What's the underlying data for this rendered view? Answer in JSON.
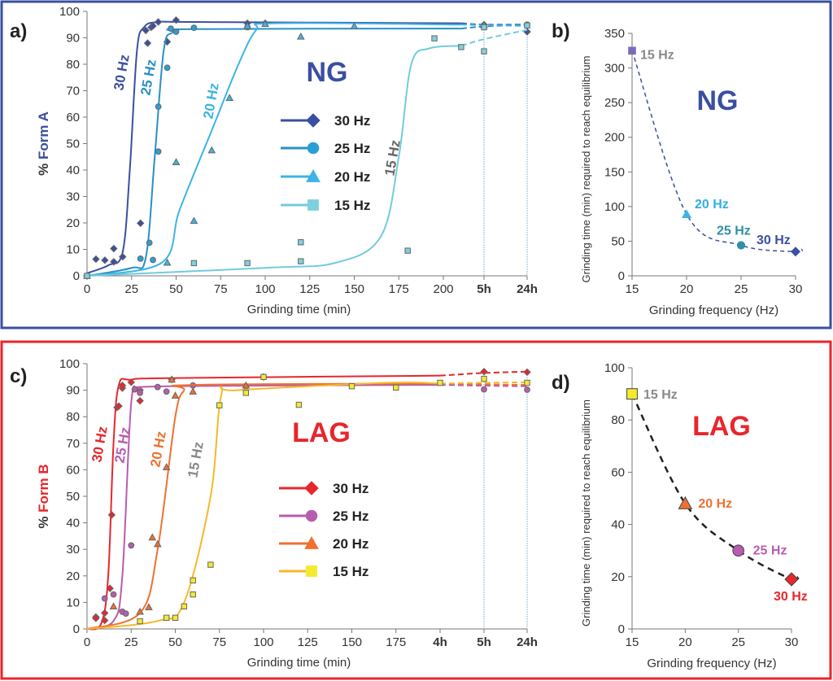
{
  "chart_data": [
    {
      "panel": "a)",
      "type": "line",
      "title": "NG",
      "title_color": "#3b4fa0",
      "xlabel": "Grinding time (min)",
      "ylabel_prefix": "% ",
      "ylabel_main": "Form A",
      "ylabel_color": "#3b4fa0",
      "ylim": [
        0,
        100
      ],
      "y_ticks": [
        0,
        10,
        20,
        30,
        40,
        50,
        60,
        70,
        80,
        90,
        100
      ],
      "x_ticks": [
        "0",
        "25",
        "50",
        "75",
        "100",
        "125",
        "150",
        "175",
        "200",
        "5h",
        "24h"
      ],
      "grid": false,
      "legend": "center",
      "series": [
        {
          "name": "30 Hz",
          "marker": "diamond",
          "color": "#3b4fa0",
          "fill": "#3b4fa0",
          "points": [
            [
              5,
              6.3
            ],
            [
              10,
              5.9
            ],
            [
              15,
              5.3
            ],
            [
              15,
              10.3
            ],
            [
              20,
              7.2
            ],
            [
              30,
              19.9
            ],
            [
              33,
              92.8
            ],
            [
              34,
              88
            ],
            [
              36,
              94
            ],
            [
              37,
              94.5
            ],
            [
              40,
              96
            ],
            [
              45,
              88.5
            ],
            [
              50,
              96.7
            ],
            [
              90,
              95.5
            ],
            [
              100,
              95.5
            ],
            [
              "5h",
              95
            ],
            [
              "24h",
              92.3
            ]
          ],
          "fit": [
            [
              0,
              1
            ],
            [
              12,
              4
            ],
            [
              20,
              9
            ],
            [
              24,
              40
            ],
            [
              28,
              85
            ],
            [
              32,
              94
            ],
            [
              40,
              96
            ],
            [
              60,
              96
            ],
            [
              210,
              95.5
            ]
          ],
          "fit_ext": [
            [
              210,
              95.5
            ],
            [
              "5h",
              95
            ],
            [
              "24h",
              95
            ]
          ],
          "annotation": "30 Hz"
        },
        {
          "name": "25 Hz",
          "marker": "circle",
          "color": "#2a8fc8",
          "fill": "#2a9fd6",
          "points": [
            [
              0,
              0
            ],
            [
              30,
              6.5
            ],
            [
              35,
              12.5
            ],
            [
              37,
              6
            ],
            [
              40,
              64
            ],
            [
              40,
              47
            ],
            [
              45,
              78.7
            ],
            [
              47,
              93.5
            ],
            [
              50,
              92.3
            ],
            [
              60,
              93.8
            ],
            [
              90,
              94
            ],
            [
              "5h",
              94.5
            ],
            [
              "24h",
              95
            ]
          ],
          "fit": [
            [
              0,
              0
            ],
            [
              25,
              3
            ],
            [
              33,
              7
            ],
            [
              38,
              45
            ],
            [
              43,
              85
            ],
            [
              48,
              92
            ],
            [
              60,
              93.3
            ],
            [
              210,
              93.5
            ]
          ],
          "fit_ext": [
            [
              210,
              93.5
            ],
            [
              "5h",
              94.3
            ],
            [
              "24h",
              95
            ]
          ],
          "annotation": "25 Hz"
        },
        {
          "name": "20 Hz",
          "marker": "triangle",
          "color": "#3cb4e6",
          "fill": "#3cb4e6",
          "points": [
            [
              0,
              0
            ],
            [
              45,
              5
            ],
            [
              50,
              43
            ],
            [
              60,
              20.8
            ],
            [
              70,
              47.5
            ],
            [
              80,
              67.3
            ],
            [
              90,
              94.5
            ],
            [
              100,
              95.3
            ],
            [
              120,
              90.5
            ],
            [
              150,
              94.4
            ],
            [
              "5h",
              94.8
            ]
          ],
          "fit": [
            [
              0,
              0
            ],
            [
              42,
              5
            ],
            [
              52,
              25
            ],
            [
              70,
              55
            ],
            [
              85,
              80
            ],
            [
              95,
              93
            ],
            [
              105,
              95.5
            ],
            [
              210,
              95
            ]
          ],
          "fit_ext": [
            [
              210,
              95
            ],
            [
              "5h",
              94.8
            ],
            [
              "24h",
              94.5
            ]
          ],
          "annotation": "20 Hz"
        },
        {
          "name": "15 Hz",
          "marker": "square",
          "color": "#72cbdc",
          "fill": "#7fd0de",
          "points": [
            [
              0,
              0
            ],
            [
              60,
              4.8
            ],
            [
              90,
              4.8
            ],
            [
              120,
              5.5
            ],
            [
              120,
              12.7
            ],
            [
              180,
              9.5
            ],
            [
              195,
              89.8
            ],
            [
              210,
              86.5
            ],
            [
              "5h",
              84.9
            ],
            [
              "5h",
              94
            ],
            [
              "24h",
              94.7
            ]
          ],
          "fit": [
            [
              0,
              0
            ],
            [
              100,
              3
            ],
            [
              140,
              5
            ],
            [
              165,
              15
            ],
            [
              175,
              45
            ],
            [
              182,
              80
            ],
            [
              192,
              86
            ],
            [
              210,
              87
            ]
          ],
          "fit_ext": [
            [
              210,
              87
            ],
            [
              "5h",
              89.5
            ],
            [
              "24h",
              93
            ]
          ],
          "annotation": "15 Hz"
        }
      ]
    },
    {
      "panel": "b)",
      "type": "scatter",
      "title": "NG",
      "title_color": "#3b4fa0",
      "xlabel": "Grinding frequency (Hz)",
      "ylabel": "Grinding time (min) required to reach equilibrium",
      "xlim": [
        15,
        30
      ],
      "ylim": [
        0,
        350
      ],
      "x_ticks": [
        15,
        20,
        25,
        30
      ],
      "y_ticks": [
        0,
        50,
        100,
        150,
        200,
        250,
        300,
        350
      ],
      "trend_color": "#3b4fa0",
      "points": [
        {
          "x": 15,
          "y": 325,
          "label": "15 Hz",
          "marker": "square",
          "fill": "#7b6cb8",
          "label_color": "#8a8a8a"
        },
        {
          "x": 20,
          "y": 89,
          "label": "20 Hz",
          "marker": "triangle",
          "fill": "#3cb4e6",
          "label_color": "#2fb0e6"
        },
        {
          "x": 25,
          "y": 44,
          "label": "25 Hz",
          "marker": "circle",
          "fill": "#2f8fa6",
          "label_color": "#2f8fa6"
        },
        {
          "x": 30,
          "y": 35,
          "label": "30 Hz",
          "marker": "diamond",
          "fill": "#3b4fa0",
          "label_color": "#3b4fa0"
        }
      ]
    },
    {
      "panel": "c)",
      "type": "line",
      "title": "LAG",
      "title_color": "#e8262c",
      "xlabel": "Grinding time (min)",
      "ylabel_prefix": "% ",
      "ylabel_main": "Form B",
      "ylabel_color": "#e8262c",
      "ylim": [
        0,
        100
      ],
      "y_ticks": [
        0,
        10,
        20,
        30,
        40,
        50,
        60,
        70,
        80,
        90,
        100
      ],
      "x_ticks": [
        "0",
        "25",
        "50",
        "75",
        "100",
        "125",
        "150",
        "175",
        "4h",
        "5h",
        "24h"
      ],
      "grid": false,
      "legend": "center",
      "series": [
        {
          "name": "30 Hz",
          "marker": "diamond",
          "color": "#e8262c",
          "fill": "#e8262c",
          "points": [
            [
              5,
              4.5
            ],
            [
              5,
              4
            ],
            [
              10,
              3.2
            ],
            [
              10,
              6
            ],
            [
              13,
              15.3
            ],
            [
              14,
              43
            ],
            [
              17,
              83.5
            ],
            [
              18,
              84
            ],
            [
              20,
              90.8
            ],
            [
              20,
              91.8
            ],
            [
              25,
              93
            ],
            [
              30,
              90
            ],
            [
              30,
              86
            ],
            [
              48,
              94
            ],
            [
              100,
              95
            ],
            [
              "5h",
              97
            ],
            [
              "24h",
              96.8
            ]
          ],
          "fit": [
            [
              0,
              0
            ],
            [
              8,
              2
            ],
            [
              12,
              20
            ],
            [
              15,
              70
            ],
            [
              18,
              92
            ],
            [
              25,
              94
            ],
            [
              50,
              94.6
            ],
            [
              200,
              95.5
            ]
          ],
          "fit_ext": [
            [
              200,
              95.5
            ],
            [
              "5h",
              96.5
            ],
            [
              "24h",
              97
            ]
          ],
          "annotation": "30 Hz"
        },
        {
          "name": "25 Hz",
          "marker": "circle",
          "color": "#b85cb0",
          "fill": "#b85cb0",
          "points": [
            [
              10,
              11.5
            ],
            [
              15,
              13
            ],
            [
              20,
              6.5
            ],
            [
              22,
              5.8
            ],
            [
              25,
              31.5
            ],
            [
              27,
              90.3
            ],
            [
              30,
              89
            ],
            [
              40,
              91.2
            ],
            [
              45,
              89.5
            ],
            [
              60,
              91.8
            ],
            [
              90,
              91.5
            ],
            [
              "5h",
              90.3
            ],
            [
              "24h",
              90.2
            ]
          ],
          "fit": [
            [
              0,
              0
            ],
            [
              15,
              3
            ],
            [
              20,
              20
            ],
            [
              25,
              85
            ],
            [
              30,
              90
            ],
            [
              45,
              91.5
            ],
            [
              200,
              92
            ]
          ],
          "fit_ext": [
            [
              200,
              92
            ],
            [
              "5h",
              91.7
            ],
            [
              "24h",
              91.5
            ]
          ],
          "annotation": "25 Hz"
        },
        {
          "name": "20 Hz",
          "marker": "triangle",
          "color": "#f07030",
          "fill": "#f07030",
          "points": [
            [
              15,
              8.5
            ],
            [
              30,
              6.5
            ],
            [
              35,
              8.2
            ],
            [
              37,
              34.5
            ],
            [
              40,
              32
            ],
            [
              45,
              61
            ],
            [
              48,
              94
            ],
            [
              50,
              88
            ],
            [
              60,
              89.5
            ],
            [
              90,
              91.8
            ]
          ],
          "fit": [
            [
              0,
              0
            ],
            [
              30,
              6
            ],
            [
              40,
              30
            ],
            [
              50,
              80
            ],
            [
              55,
              90
            ],
            [
              60,
              92
            ],
            [
              200,
              92.5
            ]
          ],
          "fit_ext": [
            [
              200,
              92.5
            ],
            [
              "5h",
              92.2
            ],
            [
              "24h",
              92
            ]
          ],
          "annotation": "20 Hz"
        },
        {
          "name": "15 Hz",
          "marker": "square",
          "color": "#f5b82a",
          "fill": "#f3ea2e",
          "points": [
            [
              30,
              2.9
            ],
            [
              45,
              4.2
            ],
            [
              50,
              4.2
            ],
            [
              55,
              8.5
            ],
            [
              60,
              13
            ],
            [
              60,
              18.3
            ],
            [
              70,
              24.2
            ],
            [
              75,
              84.3
            ],
            [
              90,
              89
            ],
            [
              100,
              95
            ],
            [
              120,
              84.5
            ],
            [
              150,
              91.5
            ],
            [
              175,
              91
            ],
            [
              "4h",
              92.8
            ],
            [
              "5h",
              94.3
            ],
            [
              "24h",
              92.8
            ]
          ],
          "fit": [
            [
              0,
              0
            ],
            [
              40,
              3
            ],
            [
              55,
              10
            ],
            [
              70,
              50
            ],
            [
              76,
              88
            ],
            [
              85,
              90
            ],
            [
              170,
              92.8
            ],
            [
              200,
              92.5
            ]
          ],
          "fit_ext": [
            [
              200,
              92.5
            ],
            [
              "5h",
              92.8
            ],
            [
              "24h",
              93
            ]
          ],
          "annotation": "15 Hz"
        }
      ]
    },
    {
      "panel": "d)",
      "type": "scatter",
      "title": "LAG",
      "title_color": "#e8262c",
      "xlabel": "Grinding frequency (Hz)",
      "ylabel": "Grinding time (min) required to reach equilibrium",
      "xlim": [
        15,
        30
      ],
      "ylim": [
        0,
        100
      ],
      "x_ticks": [
        15,
        20,
        25,
        30
      ],
      "y_ticks": [
        0,
        20,
        40,
        60,
        80,
        100
      ],
      "trend_color": "#222222",
      "points": [
        {
          "x": 15,
          "y": 90,
          "label": "15 Hz",
          "marker": "square",
          "fill": "#f3ea2e",
          "label_color": "#8a8a8a"
        },
        {
          "x": 20,
          "y": 48,
          "label": "20 Hz",
          "marker": "triangle",
          "fill": "#f07030",
          "label_color": "#f07030"
        },
        {
          "x": 25,
          "y": 30,
          "label": "25 Hz",
          "marker": "circle",
          "fill": "#b85cb0",
          "label_color": "#b85cb0"
        },
        {
          "x": 30,
          "y": 19,
          "label": "30 Hz",
          "marker": "diamond",
          "fill": "#e8262c",
          "label_color": "#e8262c"
        }
      ]
    }
  ],
  "frames": {
    "top_color": "#3b4fa0",
    "bottom_color": "#e8262c"
  }
}
